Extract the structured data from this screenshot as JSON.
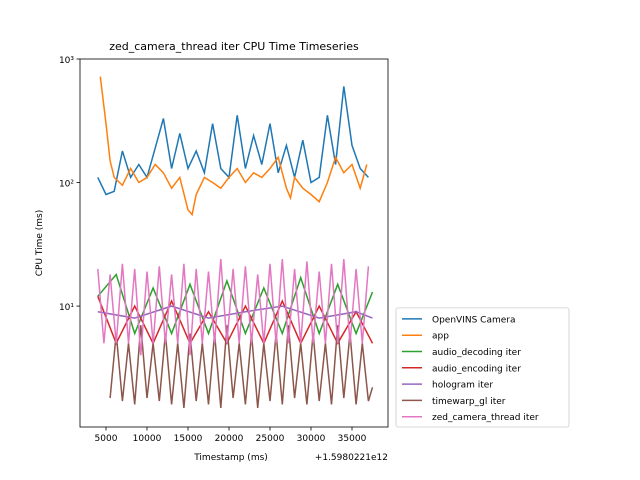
{
  "chart_data": {
    "type": "line",
    "title": "zed_camera_thread iter CPU Time Timeseries",
    "xlabel": "Timestamp (ms)",
    "ylabel": "CPU Time (ms)",
    "x_offset_label": "+1.5980221e12",
    "yscale": "log",
    "xlim": [
      1830,
      39390
    ],
    "ylim": [
      1.05,
      1000
    ],
    "xticks": [
      5000,
      10000,
      15000,
      20000,
      25000,
      30000,
      35000
    ],
    "yticks": [
      {
        "value": 10,
        "label": "10¹"
      },
      {
        "value": 100,
        "label": "10²"
      },
      {
        "value": 1000,
        "label": "10³"
      }
    ],
    "legend": "outside lower right",
    "series": [
      {
        "name": "OpenVINS Camera",
        "color": "#1f77b4",
        "x": [
          4000,
          5000,
          6000,
          7000,
          8000,
          9000,
          10000,
          11000,
          12000,
          13000,
          14000,
          15000,
          16000,
          17000,
          18000,
          19000,
          20000,
          21000,
          22000,
          23000,
          24000,
          25000,
          26000,
          27000,
          28000,
          29000,
          30000,
          31000,
          32000,
          33000,
          34000,
          35000,
          36000,
          37000
        ],
        "values": [
          110,
          80,
          85,
          180,
          110,
          140,
          110,
          190,
          330,
          130,
          250,
          130,
          180,
          120,
          300,
          130,
          110,
          350,
          130,
          240,
          140,
          300,
          120,
          200,
          110,
          220,
          100,
          110,
          350,
          140,
          600,
          200,
          130,
          110
        ]
      },
      {
        "name": "app",
        "color": "#ff7f0e",
        "x": [
          4300,
          5000,
          5500,
          6000,
          7000,
          8000,
          9000,
          10000,
          11000,
          12000,
          13000,
          14000,
          15000,
          15500,
          16000,
          17000,
          18000,
          19000,
          20000,
          21000,
          22000,
          23000,
          24000,
          25000,
          26000,
          27000,
          27500,
          28000,
          29000,
          30000,
          31000,
          32000,
          33000,
          34000,
          35000,
          36000,
          36800
        ],
        "values": [
          720,
          300,
          150,
          110,
          95,
          130,
          100,
          110,
          140,
          120,
          90,
          110,
          60,
          55,
          80,
          110,
          100,
          90,
          110,
          130,
          100,
          120,
          110,
          130,
          160,
          90,
          75,
          110,
          90,
          80,
          70,
          100,
          160,
          120,
          140,
          90,
          140
        ]
      },
      {
        "name": "audio_decoding iter",
        "color": "#2ca02c",
        "x": [
          4000,
          6250,
          8500,
          10750,
          13000,
          15250,
          17500,
          19750,
          22000,
          24250,
          26500,
          28750,
          31000,
          33250,
          35500,
          37500
        ],
        "values": [
          12,
          18,
          6,
          14,
          6,
          15,
          6,
          16,
          6,
          14,
          6,
          17,
          6,
          15,
          6,
          13
        ]
      },
      {
        "name": "audio_encoding iter",
        "color": "#d62728",
        "x": [
          4000,
          6250,
          8500,
          10750,
          13000,
          15250,
          17500,
          19750,
          22000,
          24250,
          26500,
          28750,
          31000,
          33250,
          35500,
          37500
        ],
        "values": [
          12,
          5,
          10,
          5,
          11,
          5,
          9,
          5,
          10,
          5,
          11,
          5,
          10,
          5,
          9,
          5
        ]
      },
      {
        "name": "hologram iter",
        "color": "#9467bd",
        "x": [
          4000,
          8500,
          13000,
          17500,
          22000,
          26500,
          31000,
          35500,
          37500
        ],
        "values": [
          9,
          8,
          10,
          8,
          9,
          10,
          8,
          9,
          8
        ]
      },
      {
        "name": "timewarp_gl iter",
        "color": "#8c564b",
        "x": [
          5500,
          6250,
          7000,
          7750,
          8500,
          9250,
          10000,
          10750,
          11500,
          12250,
          13000,
          13750,
          14500,
          15250,
          16000,
          16750,
          17500,
          18250,
          19000,
          19750,
          20500,
          21250,
          22000,
          22750,
          23500,
          24250,
          25000,
          25750,
          26500,
          27250,
          28000,
          28750,
          29500,
          30250,
          31000,
          31750,
          32500,
          33250,
          34000,
          34750,
          35500,
          36250,
          37000,
          37500
        ],
        "values": [
          1.8,
          6,
          1.7,
          5,
          1.6,
          7,
          1.8,
          5,
          1.7,
          6,
          1.6,
          5,
          1.5,
          6,
          1.7,
          5,
          1.6,
          6,
          1.5,
          7,
          1.8,
          5,
          1.6,
          6,
          1.5,
          5,
          1.7,
          6,
          1.6,
          7,
          1.8,
          5,
          1.6,
          6,
          1.7,
          5,
          1.6,
          7,
          1.8,
          6,
          1.6,
          5,
          1.7,
          2.2
        ]
      },
      {
        "name": "zed_camera_thread iter",
        "color": "#e377c2",
        "x": [
          4000,
          4750,
          5500,
          6250,
          7000,
          7750,
          8500,
          9250,
          10000,
          10750,
          11500,
          12250,
          13000,
          13750,
          14500,
          15250,
          16000,
          16750,
          17500,
          18250,
          19000,
          19750,
          20500,
          21250,
          22000,
          22750,
          23500,
          24250,
          25000,
          25750,
          26500,
          27250,
          28000,
          28750,
          29500,
          30250,
          31000,
          31750,
          32500,
          33250,
          34000,
          34750,
          35500,
          36250,
          37000
        ],
        "values": [
          20,
          5,
          18,
          5,
          22,
          5,
          20,
          4,
          19,
          5,
          21,
          5,
          18,
          5,
          22,
          4,
          20,
          5,
          19,
          5,
          24,
          5,
          20,
          5,
          21,
          5,
          18,
          5,
          22,
          5,
          24,
          5,
          20,
          5,
          23,
          5,
          19,
          5,
          22,
          5,
          24,
          5,
          20,
          5,
          21
        ]
      }
    ]
  }
}
